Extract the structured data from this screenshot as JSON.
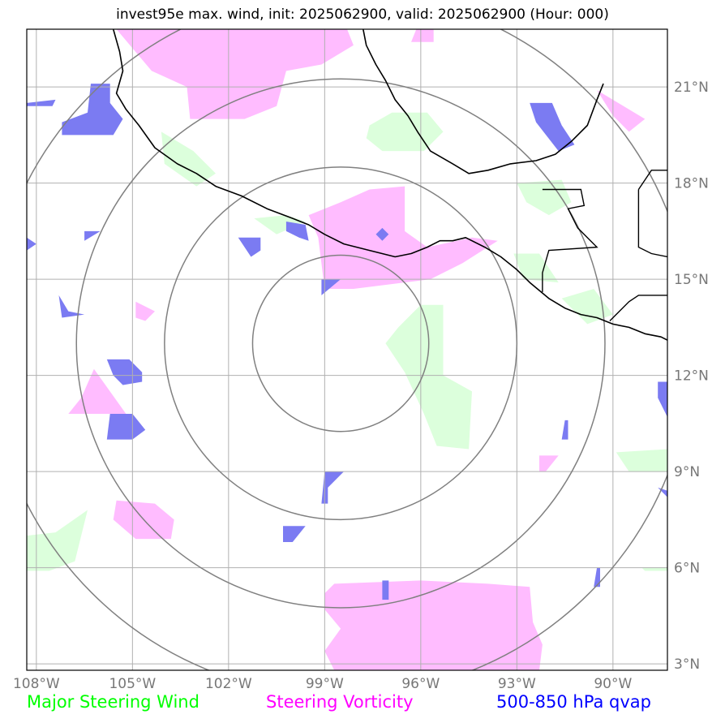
{
  "title": "invest95e max. wind, init: 2025062900, valid: 2025062900 (Hour: 000)",
  "map": {
    "lon_range": [
      -108.3,
      -88.3
    ],
    "lat_range": [
      2.8,
      22.8
    ],
    "center": {
      "lon": -98.5,
      "lat": 13.0
    },
    "range_rings_deg": [
      2.75,
      5.5,
      8.25,
      11.0
    ],
    "colors": {
      "grid": "#b0b0b0",
      "ring": "#808080",
      "coast": "#000000",
      "steering_wind": "#dcffdc",
      "steering_vorticity": "#ffbcff",
      "qvap": "#7b7bf2"
    },
    "lon_ticks": [
      {
        "value": -108,
        "label": "108°W"
      },
      {
        "value": -105,
        "label": "105°W"
      },
      {
        "value": -102,
        "label": "102°W"
      },
      {
        "value": -99,
        "label": "99°W"
      },
      {
        "value": -96,
        "label": "96°W"
      },
      {
        "value": -93,
        "label": "93°W"
      },
      {
        "value": -90,
        "label": "90°W"
      }
    ],
    "lat_ticks": [
      {
        "value": 3,
        "label": "3°N"
      },
      {
        "value": 6,
        "label": "6°N"
      },
      {
        "value": 9,
        "label": "9°N"
      },
      {
        "value": 12,
        "label": "12°N"
      },
      {
        "value": 15,
        "label": "15°N"
      },
      {
        "value": 18,
        "label": "18°N"
      },
      {
        "value": 21,
        "label": "21°N"
      }
    ],
    "coastline": [
      [
        -105.6,
        22.8
      ],
      [
        -105.4,
        22.1
      ],
      [
        -105.3,
        21.5
      ],
      [
        -105.5,
        20.8
      ],
      [
        -105.2,
        20.3
      ],
      [
        -104.8,
        19.8
      ],
      [
        -104.3,
        19.1
      ],
      [
        -103.6,
        18.6
      ],
      [
        -103.0,
        18.3
      ],
      [
        -102.4,
        17.9
      ],
      [
        -101.6,
        17.6
      ],
      [
        -100.8,
        17.2
      ],
      [
        -100.0,
        16.9
      ],
      [
        -99.5,
        16.7
      ],
      [
        -99.0,
        16.4
      ],
      [
        -98.4,
        16.1
      ],
      [
        -97.6,
        15.9
      ],
      [
        -96.8,
        15.7
      ],
      [
        -96.3,
        15.8
      ],
      [
        -95.8,
        16.0
      ],
      [
        -95.4,
        16.2
      ],
      [
        -95.0,
        16.2
      ],
      [
        -94.6,
        16.3
      ],
      [
        -94.0,
        16.0
      ],
      [
        -93.5,
        15.7
      ],
      [
        -93.0,
        15.3
      ],
      [
        -92.6,
        14.9
      ],
      [
        -92.0,
        14.4
      ],
      [
        -91.5,
        14.1
      ],
      [
        -91.0,
        13.9
      ],
      [
        -90.5,
        13.8
      ],
      [
        -90.0,
        13.6
      ],
      [
        -89.5,
        13.5
      ],
      [
        -89.0,
        13.3
      ],
      [
        -88.5,
        13.2
      ],
      [
        -88.3,
        13.1
      ]
    ],
    "gulf_coast": [
      [
        -97.8,
        22.8
      ],
      [
        -97.7,
        22.3
      ],
      [
        -97.4,
        21.7
      ],
      [
        -97.1,
        21.2
      ],
      [
        -96.8,
        20.6
      ],
      [
        -96.4,
        20.1
      ],
      [
        -96.1,
        19.6
      ],
      [
        -95.7,
        19.0
      ],
      [
        -95.0,
        18.6
      ],
      [
        -94.5,
        18.3
      ],
      [
        -93.9,
        18.4
      ],
      [
        -93.2,
        18.6
      ],
      [
        -92.4,
        18.7
      ],
      [
        -91.8,
        18.9
      ],
      [
        -91.3,
        19.3
      ],
      [
        -90.8,
        19.8
      ],
      [
        -90.5,
        20.6
      ],
      [
        -90.3,
        21.1
      ]
    ],
    "borders": [
      [
        [
          -92.2,
          17.8
        ],
        [
          -91.0,
          17.8
        ],
        [
          -90.9,
          17.3
        ],
        [
          -91.4,
          17.2
        ],
        [
          -91.1,
          16.6
        ],
        [
          -90.5,
          16.0
        ],
        [
          -92.0,
          15.9
        ],
        [
          -92.2,
          15.2
        ],
        [
          -92.2,
          14.6
        ]
      ],
      [
        [
          -89.2,
          17.8
        ],
        [
          -89.2,
          16.0
        ],
        [
          -88.8,
          15.8
        ],
        [
          -88.3,
          15.7
        ]
      ],
      [
        [
          -90.1,
          13.7
        ],
        [
          -89.5,
          14.3
        ],
        [
          -89.2,
          14.5
        ],
        [
          -88.3,
          14.5
        ]
      ],
      [
        [
          -89.2,
          17.8
        ],
        [
          -88.8,
          18.4
        ],
        [
          -88.3,
          18.4
        ]
      ]
    ],
    "steering_wind_polygons": [
      [
        [
          -104.1,
          19.6
        ],
        [
          -103.1,
          19.0
        ],
        [
          -102.4,
          18.3
        ],
        [
          -103.0,
          17.9
        ],
        [
          -104.0,
          18.6
        ]
      ],
      [
        [
          -97.6,
          19.8
        ],
        [
          -96.9,
          20.2
        ],
        [
          -95.8,
          20.2
        ],
        [
          -95.3,
          19.6
        ],
        [
          -95.9,
          19.0
        ],
        [
          -97.2,
          19.0
        ],
        [
          -97.7,
          19.4
        ]
      ],
      [
        [
          -93.0,
          18.0
        ],
        [
          -91.6,
          18.1
        ],
        [
          -91.3,
          17.4
        ],
        [
          -92.0,
          17.0
        ],
        [
          -92.7,
          17.4
        ]
      ],
      [
        [
          -101.2,
          16.9
        ],
        [
          -100.5,
          16.4
        ],
        [
          -99.6,
          16.8
        ],
        [
          -100.2,
          17.0
        ]
      ],
      [
        [
          -93.1,
          15.8
        ],
        [
          -92.3,
          15.8
        ],
        [
          -91.7,
          14.9
        ],
        [
          -92.8,
          15.0
        ]
      ],
      [
        [
          -91.6,
          14.4
        ],
        [
          -90.6,
          14.7
        ],
        [
          -90.0,
          13.9
        ],
        [
          -90.8,
          13.6
        ]
      ],
      [
        [
          -96.0,
          14.2
        ],
        [
          -95.3,
          14.2
        ],
        [
          -95.3,
          12.0
        ],
        [
          -94.4,
          11.5
        ],
        [
          -94.5,
          9.7
        ],
        [
          -95.5,
          9.8
        ],
        [
          -95.9,
          10.8
        ],
        [
          -96.5,
          12.1
        ],
        [
          -97.1,
          13.0
        ],
        [
          -96.7,
          13.5
        ]
      ],
      [
        [
          -89.9,
          9.6
        ],
        [
          -88.3,
          9.7
        ],
        [
          -88.3,
          9.0
        ],
        [
          -89.5,
          9.0
        ]
      ],
      [
        [
          -108.3,
          7.0
        ],
        [
          -107.4,
          7.1
        ],
        [
          -106.4,
          7.8
        ],
        [
          -106.8,
          6.2
        ],
        [
          -107.6,
          5.9
        ],
        [
          -108.3,
          5.9
        ]
      ],
      [
        [
          -89.1,
          6.0
        ],
        [
          -88.3,
          6.0
        ],
        [
          -88.3,
          5.9
        ],
        [
          -89.0,
          5.9
        ]
      ]
    ],
    "steering_vorticity_polygons": [
      [
        [
          -105.5,
          22.8
        ],
        [
          -98.3,
          22.8
        ],
        [
          -98.1,
          22.3
        ],
        [
          -99.1,
          21.7
        ],
        [
          -100.2,
          21.5
        ],
        [
          -100.5,
          20.4
        ],
        [
          -101.5,
          20.0
        ],
        [
          -103.2,
          20.0
        ],
        [
          -103.3,
          21.0
        ],
        [
          -104.4,
          21.5
        ]
      ],
      [
        [
          -96.3,
          22.4
        ],
        [
          -95.6,
          22.4
        ],
        [
          -95.6,
          22.9
        ],
        [
          -96.1,
          22.9
        ]
      ],
      [
        [
          -90.5,
          20.9
        ],
        [
          -89.0,
          20.0
        ],
        [
          -89.5,
          19.6
        ],
        [
          -90.0,
          20.1
        ]
      ],
      [
        [
          -96.5,
          17.9
        ],
        [
          -97.6,
          17.8
        ],
        [
          -98.5,
          17.4
        ],
        [
          -99.5,
          17.0
        ],
        [
          -99.2,
          16.3
        ],
        [
          -99.0,
          14.7
        ],
        [
          -98.1,
          14.7
        ],
        [
          -95.7,
          15.0
        ],
        [
          -94.7,
          15.5
        ],
        [
          -93.6,
          16.2
        ],
        [
          -94.4,
          16.3
        ],
        [
          -95.8,
          16.0
        ],
        [
          -96.5,
          16.5
        ]
      ],
      [
        [
          -104.9,
          14.3
        ],
        [
          -104.3,
          14.0
        ],
        [
          -104.6,
          13.7
        ],
        [
          -104.9,
          13.8
        ]
      ],
      [
        [
          -106.2,
          12.2
        ],
        [
          -105.2,
          10.8
        ],
        [
          -107.0,
          10.8
        ],
        [
          -106.6,
          11.3
        ]
      ],
      [
        [
          -105.5,
          8.1
        ],
        [
          -104.3,
          8.0
        ],
        [
          -103.7,
          7.5
        ],
        [
          -103.8,
          6.9
        ],
        [
          -104.9,
          6.9
        ],
        [
          -105.6,
          7.5
        ]
      ],
      [
        [
          -92.3,
          9.5
        ],
        [
          -91.7,
          9.5
        ],
        [
          -92.1,
          9.0
        ],
        [
          -92.3,
          9.0
        ]
      ],
      [
        [
          -98.7,
          5.5
        ],
        [
          -96.0,
          5.6
        ],
        [
          -93.9,
          5.5
        ],
        [
          -92.6,
          5.4
        ],
        [
          -92.5,
          4.3
        ],
        [
          -92.2,
          3.6
        ],
        [
          -92.3,
          2.8
        ],
        [
          -98.7,
          2.8
        ],
        [
          -99.0,
          3.4
        ],
        [
          -98.5,
          4.1
        ],
        [
          -99.0,
          4.7
        ],
        [
          -99.0,
          5.2
        ]
      ]
    ],
    "qvap_polygons": [
      [
        [
          -108.3,
          20.5
        ],
        [
          -107.4,
          20.6
        ],
        [
          -107.5,
          20.4
        ],
        [
          -108.3,
          20.4
        ]
      ],
      [
        [
          -106.3,
          21.1
        ],
        [
          -105.7,
          21.1
        ],
        [
          -105.7,
          20.5
        ],
        [
          -105.3,
          20.0
        ],
        [
          -105.6,
          19.5
        ],
        [
          -106.3,
          19.5
        ],
        [
          -107.2,
          19.5
        ],
        [
          -107.2,
          19.9
        ],
        [
          -106.4,
          20.2
        ]
      ],
      [
        [
          -92.6,
          20.5
        ],
        [
          -91.9,
          20.5
        ],
        [
          -91.6,
          19.8
        ],
        [
          -91.2,
          19.2
        ],
        [
          -91.7,
          19.0
        ],
        [
          -92.4,
          19.9
        ]
      ],
      [
        [
          -101.7,
          16.3
        ],
        [
          -101.0,
          16.3
        ],
        [
          -101.0,
          15.9
        ],
        [
          -101.3,
          15.7
        ]
      ],
      [
        [
          -100.2,
          16.8
        ],
        [
          -99.6,
          16.7
        ],
        [
          -99.5,
          16.2
        ],
        [
          -99.8,
          16.3
        ],
        [
          -100.2,
          16.5
        ]
      ],
      [
        [
          -106.5,
          16.5
        ],
        [
          -106.0,
          16.5
        ],
        [
          -106.5,
          16.2
        ]
      ],
      [
        [
          -108.3,
          16.3
        ],
        [
          -108.0,
          16.1
        ],
        [
          -108.3,
          15.9
        ]
      ],
      [
        [
          -97.2,
          16.6
        ],
        [
          -97.0,
          16.4
        ],
        [
          -97.2,
          16.2
        ],
        [
          -97.4,
          16.4
        ]
      ],
      [
        [
          -99.1,
          15.0
        ],
        [
          -98.5,
          15.0
        ],
        [
          -99.1,
          14.5
        ]
      ],
      [
        [
          -107.3,
          14.5
        ],
        [
          -107.0,
          14.0
        ],
        [
          -106.5,
          13.9
        ],
        [
          -107.2,
          13.8
        ]
      ],
      [
        [
          -105.8,
          12.5
        ],
        [
          -105.1,
          12.5
        ],
        [
          -104.7,
          12.1
        ],
        [
          -104.7,
          11.8
        ],
        [
          -105.3,
          11.7
        ],
        [
          -105.6,
          12.0
        ]
      ],
      [
        [
          -105.7,
          10.8
        ],
        [
          -105.0,
          10.8
        ],
        [
          -104.6,
          10.3
        ],
        [
          -105.0,
          10.0
        ],
        [
          -105.8,
          10.0
        ]
      ],
      [
        [
          -99.0,
          9.0
        ],
        [
          -98.4,
          9.0
        ],
        [
          -98.9,
          8.5
        ],
        [
          -98.9,
          8.0
        ],
        [
          -99.1,
          8.0
        ]
      ],
      [
        [
          -100.3,
          7.3
        ],
        [
          -99.6,
          7.3
        ],
        [
          -100.0,
          6.8
        ],
        [
          -100.3,
          6.8
        ]
      ],
      [
        [
          -97.2,
          5.6
        ],
        [
          -97.0,
          5.6
        ],
        [
          -97.0,
          5.0
        ],
        [
          -97.2,
          5.0
        ]
      ],
      [
        [
          -88.6,
          11.8
        ],
        [
          -88.3,
          11.8
        ],
        [
          -88.3,
          10.7
        ],
        [
          -88.6,
          11.3
        ]
      ],
      [
        [
          -91.5,
          10.6
        ],
        [
          -91.4,
          10.6
        ],
        [
          -91.4,
          10.0
        ],
        [
          -91.6,
          10.0
        ]
      ],
      [
        [
          -90.5,
          6.0
        ],
        [
          -90.4,
          6.0
        ],
        [
          -90.4,
          5.4
        ],
        [
          -90.6,
          5.4
        ]
      ],
      [
        [
          -88.6,
          8.5
        ],
        [
          -88.3,
          8.4
        ],
        [
          -88.3,
          8.2
        ]
      ]
    ]
  },
  "legend": {
    "steering_wind": {
      "label": "Major Steering Wind",
      "color": "#00ff00"
    },
    "steering_vorticity": {
      "label": "Steering Vorticity",
      "color": "#ff00ff"
    },
    "qvap": {
      "label": "500-850 hPa qvap",
      "color": "#0000ff"
    }
  }
}
